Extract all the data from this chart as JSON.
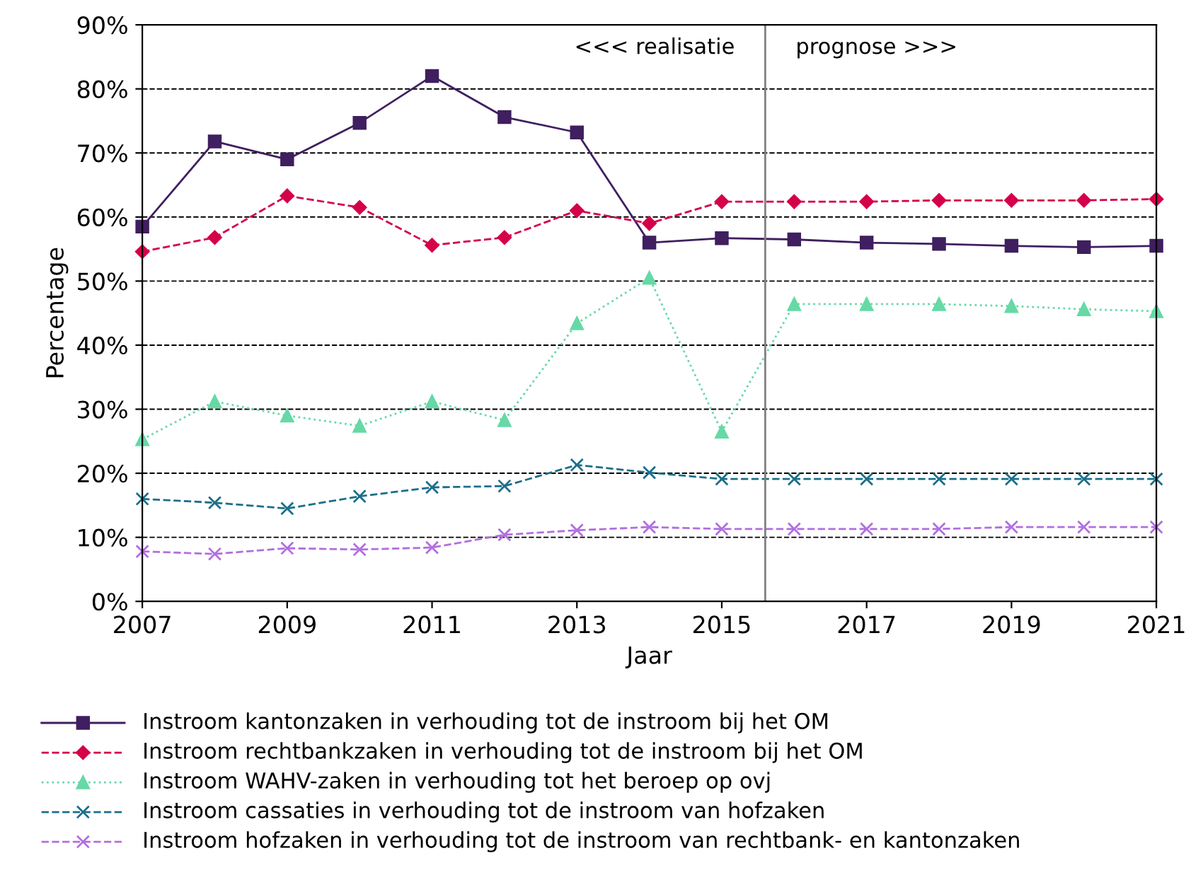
{
  "chart_data": {
    "type": "line",
    "xlabel": "Jaar",
    "ylabel": "Percentage",
    "x": [
      2007,
      2008,
      2009,
      2010,
      2011,
      2012,
      2013,
      2014,
      2015,
      2016,
      2017,
      2018,
      2019,
      2020,
      2021
    ],
    "xlim": [
      2007,
      2021
    ],
    "xticks": [
      2007,
      2009,
      2011,
      2013,
      2015,
      2017,
      2019,
      2021
    ],
    "ylim": [
      0,
      90
    ],
    "yticks": [
      {
        "value": 0,
        "label": "0%"
      },
      {
        "value": 10,
        "label": "10%"
      },
      {
        "value": 20,
        "label": "20%"
      },
      {
        "value": 30,
        "label": "30%"
      },
      {
        "value": 40,
        "label": "40%"
      },
      {
        "value": 50,
        "label": "50%"
      },
      {
        "value": 60,
        "label": "60%"
      },
      {
        "value": 70,
        "label": "70%"
      },
      {
        "value": 80,
        "label": "80%"
      },
      {
        "value": 90,
        "label": "90%"
      }
    ],
    "grid": "y",
    "legend": "bottom",
    "series": [
      {
        "name": "Instroom kantonzaken in verhouding tot de instroom bij het OM",
        "color": "#3f1f5f",
        "marker": "square",
        "line_style": "solid",
        "values": [
          58.5,
          71.8,
          69,
          74.7,
          82,
          75.6,
          73.2,
          56,
          56.7,
          56.5,
          56,
          55.8,
          55.5,
          55.3,
          55.5
        ]
      },
      {
        "name": "Instroom rechtbankzaken in verhouding tot de instroom bij het OM",
        "color": "#d4004a",
        "marker": "diamond",
        "line_style": "dashed",
        "values": [
          54.6,
          56.8,
          63.3,
          61.5,
          55.6,
          56.8,
          61,
          59,
          62.4,
          62.4,
          62.4,
          62.6,
          62.6,
          62.6,
          62.8
        ]
      },
      {
        "name": "Instroom WAHV-zaken in verhouding tot het beroep op ovj",
        "color": "#66d9a6",
        "marker": "triangle",
        "line_style": "dotted",
        "values": [
          25.3,
          31.2,
          29,
          27.4,
          31.2,
          28.3,
          43.4,
          50.5,
          26.5,
          46.4,
          46.4,
          46.4,
          46.1,
          45.6,
          45.3
        ]
      },
      {
        "name": "Instroom cassaties in verhouding tot de instroom van hofzaken",
        "color": "#1a6f8a",
        "marker": "cross",
        "line_style": "dashed",
        "values": [
          16,
          15.4,
          14.5,
          16.4,
          17.8,
          18,
          21.3,
          20.1,
          19.1,
          19.1,
          19.1,
          19.1,
          19.1,
          19.1,
          19.1
        ]
      },
      {
        "name": "Instroom hofzaken in verhouding tot de instroom van rechtbank- en kantonzaken",
        "color": "#b26ee0",
        "marker": "cross",
        "line_style": "dashed",
        "values": [
          7.8,
          7.4,
          8.3,
          8.1,
          8.4,
          10.4,
          11.1,
          11.6,
          11.3,
          11.3,
          11.3,
          11.3,
          11.6,
          11.6,
          11.6
        ]
      }
    ],
    "ref_lines": [
      {
        "axis": "x",
        "value": 2015.6,
        "color": "#808080"
      }
    ],
    "annotations": [
      "<<< realisatie",
      "prognose >>>"
    ]
  }
}
